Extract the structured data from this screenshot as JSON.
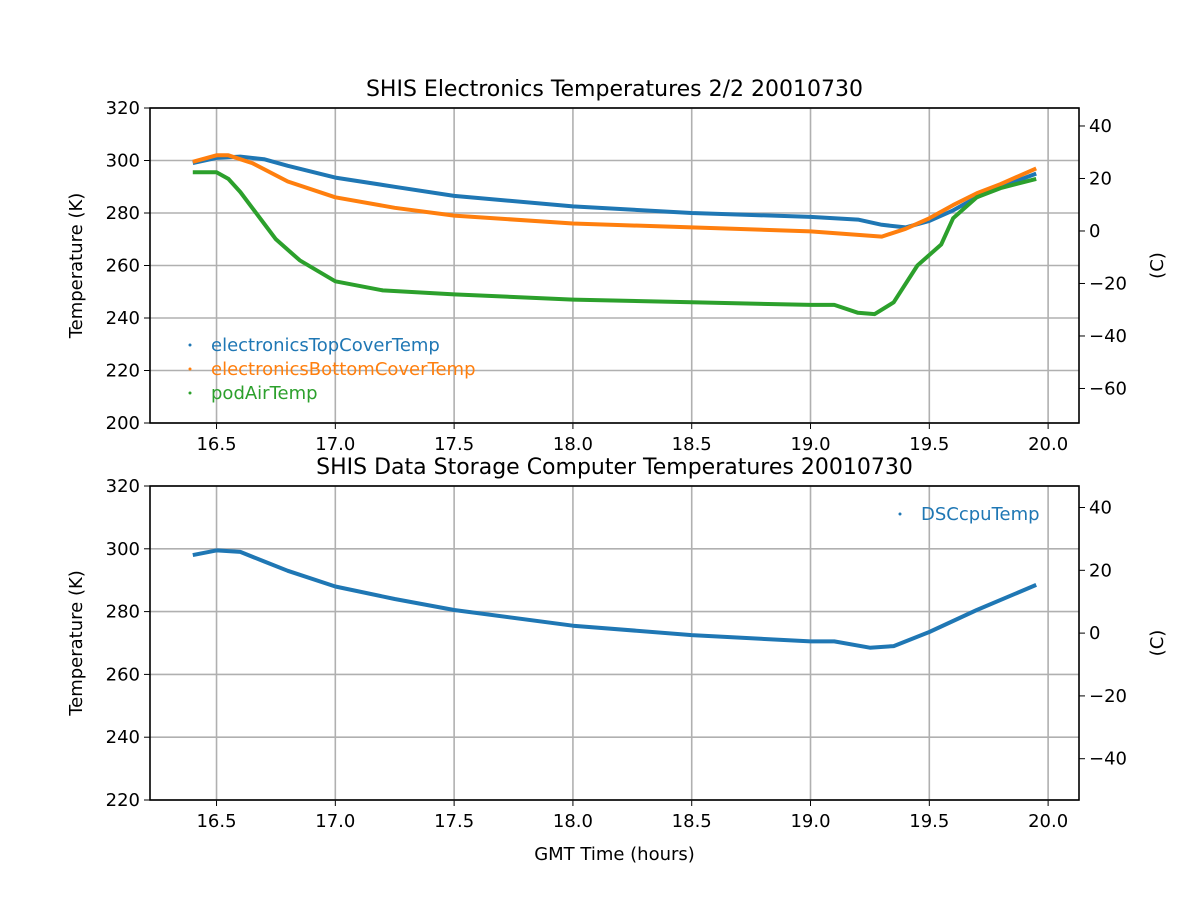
{
  "chart_data": [
    {
      "type": "line",
      "title": "SHIS Electronics Temperatures 2/2 20010730",
      "xlabel": "",
      "ylabel": "Temperature (K)",
      "ylabel_right": "(C)",
      "xlim": [
        16.22,
        20.13
      ],
      "ylim": [
        200,
        320
      ],
      "xticks": [
        16.5,
        17.0,
        17.5,
        18.0,
        18.5,
        19.0,
        19.5,
        20.0
      ],
      "yticks": [
        200,
        220,
        240,
        260,
        280,
        300,
        320
      ],
      "yticks_right": [
        -60,
        -40,
        -20,
        0,
        20,
        40
      ],
      "grid": true,
      "legend": "bottom-left",
      "series": [
        {
          "name": "electronicsTopCoverTemp",
          "color": "#1f77b4",
          "x": [
            16.4,
            16.5,
            16.6,
            16.7,
            16.8,
            17.0,
            17.25,
            17.5,
            18.0,
            18.5,
            19.0,
            19.2,
            19.3,
            19.4,
            19.5,
            19.6,
            19.7,
            19.8,
            19.95
          ],
          "y": [
            299,
            301,
            301.5,
            300.5,
            298,
            293.5,
            290,
            286.5,
            282.5,
            280,
            278.5,
            277.5,
            275.5,
            274.5,
            277,
            281,
            286,
            290,
            295
          ]
        },
        {
          "name": "electronicsBottomCoverTemp",
          "color": "#ff7f0e",
          "x": [
            16.4,
            16.5,
            16.55,
            16.65,
            16.8,
            17.0,
            17.25,
            17.5,
            18.0,
            18.5,
            19.0,
            19.15,
            19.3,
            19.4,
            19.5,
            19.6,
            19.7,
            19.8,
            19.95
          ],
          "y": [
            299.5,
            302,
            302,
            299,
            292,
            286,
            282,
            279,
            276,
            274.5,
            273,
            272,
            271,
            274,
            278,
            283,
            287.5,
            291,
            297
          ]
        },
        {
          "name": "podAirTemp",
          "color": "#2ca02c",
          "x": [
            16.4,
            16.5,
            16.55,
            16.6,
            16.7,
            16.75,
            16.85,
            17.0,
            17.2,
            17.5,
            18.0,
            18.5,
            19.0,
            19.1,
            19.2,
            19.27,
            19.35,
            19.45,
            19.5,
            19.55,
            19.6,
            19.7,
            19.8,
            19.95
          ],
          "y": [
            295.5,
            295.5,
            293,
            288,
            276,
            270,
            262,
            254,
            250.5,
            249,
            247,
            246,
            245,
            245,
            242,
            241.5,
            246,
            260,
            264,
            268,
            278,
            286,
            289.5,
            293
          ]
        }
      ]
    },
    {
      "type": "line",
      "title": "SHIS Data Storage Computer Temperatures 20010730",
      "xlabel": "GMT Time (hours)",
      "ylabel": "Temperature (K)",
      "ylabel_right": "(C)",
      "xlim": [
        16.22,
        20.13
      ],
      "ylim": [
        220,
        320
      ],
      "xticks": [
        16.5,
        17.0,
        17.5,
        18.0,
        18.5,
        19.0,
        19.5,
        20.0
      ],
      "yticks": [
        220,
        240,
        260,
        280,
        300,
        320
      ],
      "yticks_right": [
        -40,
        -20,
        0,
        20,
        40
      ],
      "grid": true,
      "legend": "top-right",
      "series": [
        {
          "name": "DSCcpuTemp",
          "color": "#1f77b4",
          "x": [
            16.4,
            16.5,
            16.6,
            16.7,
            16.8,
            17.0,
            17.25,
            17.5,
            18.0,
            18.5,
            19.0,
            19.1,
            19.25,
            19.35,
            19.5,
            19.7,
            19.95
          ],
          "y": [
            298,
            299.5,
            299,
            296,
            293,
            288,
            284,
            280.5,
            275.5,
            272.5,
            270.5,
            270.5,
            268.5,
            269,
            273.5,
            280.5,
            288.5
          ]
        }
      ]
    }
  ]
}
